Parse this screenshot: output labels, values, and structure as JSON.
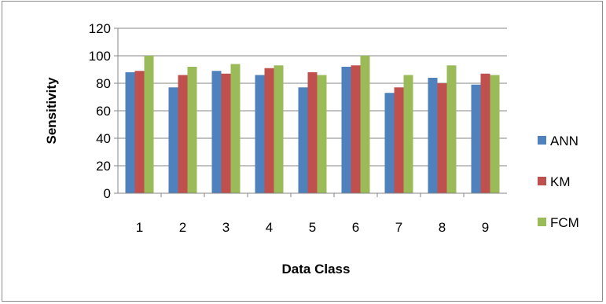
{
  "chart_data": {
    "type": "bar",
    "xlabel": "Data Class",
    "ylabel": "Sensitivity",
    "categories": [
      "1",
      "2",
      "3",
      "4",
      "5",
      "6",
      "7",
      "8",
      "9"
    ],
    "ylim": [
      0,
      120
    ],
    "yticks": [
      "0",
      "20",
      "40",
      "60",
      "80",
      "100",
      "120"
    ],
    "grid": "horizontal",
    "legend": "right",
    "series": [
      {
        "name": "ANN",
        "color": "#4f81bd",
        "values": [
          88,
          77,
          89,
          86,
          77,
          92,
          73,
          84,
          79
        ]
      },
      {
        "name": "KM",
        "color": "#c0504d",
        "values": [
          89,
          86,
          87,
          91,
          88,
          93,
          77,
          80,
          87
        ]
      },
      {
        "name": "FCM",
        "color": "#9bbb59",
        "values": [
          100,
          92,
          94,
          93,
          86,
          100,
          86,
          93,
          86
        ]
      }
    ]
  }
}
